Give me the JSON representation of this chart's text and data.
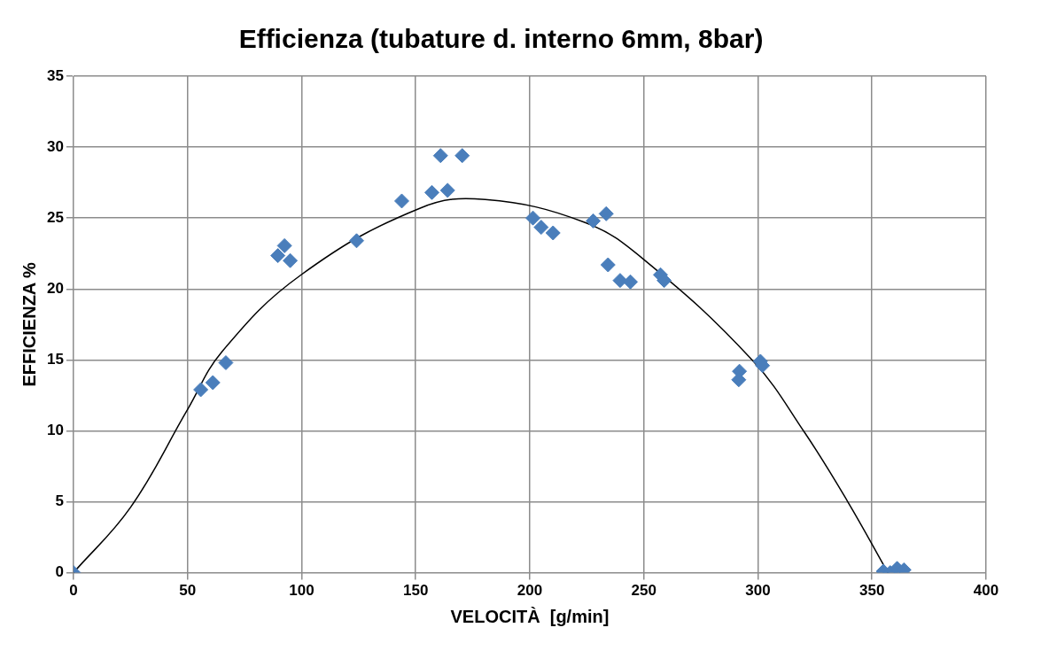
{
  "chart_data": {
    "type": "scatter",
    "title": "Efficienza (tubature d. interno 6mm, 8bar)",
    "xlabel": "VELOCITÀ  [g/min]",
    "ylabel": "EFFICIENZA %",
    "xlim": [
      0,
      400
    ],
    "xticks": [
      0,
      50,
      100,
      150,
      200,
      250,
      300,
      350,
      400
    ],
    "ylim": [
      0,
      35
    ],
    "yticks": [
      0,
      5,
      10,
      15,
      20,
      25,
      30,
      35
    ],
    "grid": true,
    "legend": false,
    "marker": "diamond",
    "series": [
      {
        "color": "#4a7ebb",
        "x": [
          0,
          55.8,
          61.1,
          66.8,
          89.6,
          92.5,
          95,
          124.1,
          143.9,
          157.1,
          164,
          160.9,
          170.4,
          201.4,
          205,
          210.2,
          227.8,
          233.5,
          234.3,
          239.6,
          244.1,
          257.3,
          258.9,
          291.9,
          291.6,
          301.1,
          302,
          355,
          358,
          361,
          364
        ],
        "values": [
          0,
          12.9,
          13.4,
          14.8,
          22.35,
          23.05,
          22,
          23.4,
          26.2,
          26.8,
          26.95,
          29.4,
          29.4,
          25,
          24.35,
          23.95,
          24.8,
          25.3,
          21.7,
          20.6,
          20.5,
          21,
          20.6,
          14.2,
          13.6,
          14.9,
          14.6,
          0.1,
          0,
          0.3,
          0.2
        ]
      },
      {
        "type": "line",
        "color": "#000000",
        "marker": "none",
        "x": [
          0,
          25,
          50,
          65.2,
          99.8,
          152,
          180.5,
          224,
          249.8,
          297.4,
          320.4,
          339.4,
          357
        ],
        "values": [
          0,
          4.6,
          11.5,
          15.6,
          21,
          25.7,
          26.3,
          24.7,
          22.1,
          15,
          9.9,
          5,
          0
        ]
      }
    ]
  }
}
